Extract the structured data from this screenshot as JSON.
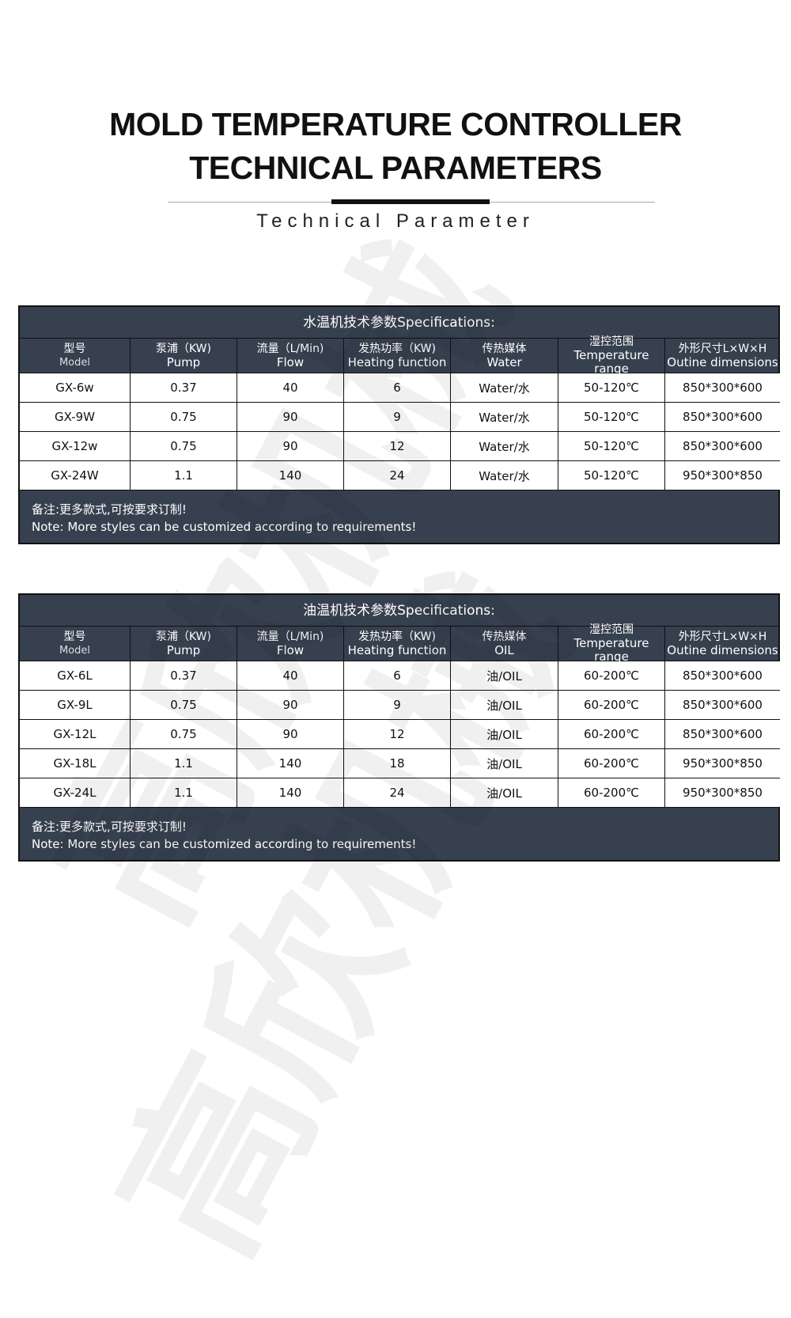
{
  "watermark": "高欣机械",
  "title": {
    "line1": "MOLD TEMPERATURE CONTROLLER",
    "line2": "TECHNICAL PARAMETERS",
    "subtitle": "Technical Parameter"
  },
  "tables": [
    {
      "title": "水温机技术参数Specifications:",
      "headers": [
        {
          "cn": "型号",
          "en": "Model"
        },
        {
          "cn": "泵浦（KW)",
          "en": "Pump"
        },
        {
          "cn": "流量（L/Min)",
          "en": "Flow"
        },
        {
          "cn": "发热功率（KW)",
          "en": "Heating function"
        },
        {
          "cn": "传热媒体",
          "en": "Water"
        },
        {
          "cn": "湿控范围",
          "en": "Temperature range"
        },
        {
          "cn": "外形尺寸L×W×H",
          "en": "Outine dimensions"
        }
      ],
      "rows": [
        [
          "GX-6w",
          "0.37",
          "40",
          "6",
          "Water/水",
          "50-120℃",
          "850*300*600"
        ],
        [
          "GX-9W",
          "0.75",
          "90",
          "9",
          "Water/水",
          "50-120℃",
          "850*300*600"
        ],
        [
          "GX-12w",
          "0.75",
          "90",
          "12",
          "Water/水",
          "50-120℃",
          "850*300*600"
        ],
        [
          "GX-24W",
          "1.1",
          "140",
          "24",
          "Water/水",
          "50-120℃",
          "950*300*850"
        ]
      ],
      "note_cn": "备注:更多款式,可按要求订制!",
      "note_en": "Note: More styles can be customized according to requirements!"
    },
    {
      "title": "油温机技术参数Specifications:",
      "headers": [
        {
          "cn": "型号",
          "en": "Model"
        },
        {
          "cn": "泵浦（KW)",
          "en": "Pump"
        },
        {
          "cn": "流量（L/Min)",
          "en": "Flow"
        },
        {
          "cn": "发热功率（KW)",
          "en": "Heating function"
        },
        {
          "cn": "传热媒体",
          "en": "OIL"
        },
        {
          "cn": "湿控范围",
          "en": "Temperature range"
        },
        {
          "cn": "外形尺寸L×W×H",
          "en": "Outine dimensions"
        }
      ],
      "rows": [
        [
          "GX-6L",
          "0.37",
          "40",
          "6",
          "油/OIL",
          "60-200℃",
          "850*300*600"
        ],
        [
          "GX-9L",
          "0.75",
          "90",
          "9",
          "油/OIL",
          "60-200℃",
          "850*300*600"
        ],
        [
          "GX-12L",
          "0.75",
          "90",
          "12",
          "油/OIL",
          "60-200℃",
          "850*300*600"
        ],
        [
          "GX-18L",
          "1.1",
          "140",
          "18",
          "油/OIL",
          "60-200℃",
          "950*300*850"
        ],
        [
          "GX-24L",
          "1.1",
          "140",
          "24",
          "油/OIL",
          "60-200℃",
          "950*300*850"
        ]
      ],
      "note_cn": "备注:更多款式,可按要求订制!",
      "note_en": "Note: More styles can be customized according to requirements!"
    }
  ]
}
